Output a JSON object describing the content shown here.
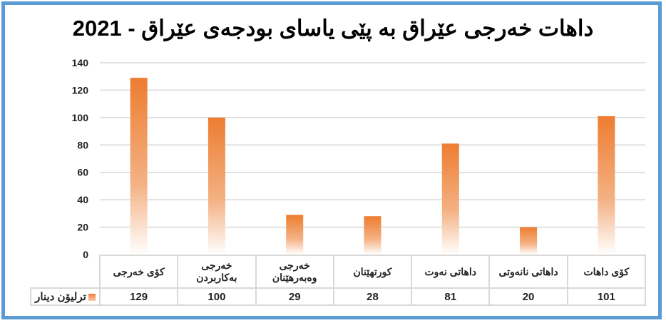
{
  "chart_data": {
    "type": "bar",
    "title": "داهات خەرجی عێراق بە پێی یاسای بودجەی عێراق - 2021",
    "categories": [
      "کۆی خەرجی",
      "خەرجی بەکاربردن",
      "خەرجی وەبەرهێنان",
      "کورتهێنان",
      "داهاتی نەوت",
      "داهاتی نانەوتی",
      "کۆی داهات"
    ],
    "category_lines": [
      [
        "کۆی خەرجی"
      ],
      [
        "خەرجی",
        "بەکاربردن"
      ],
      [
        "خەرجی",
        "وەبەرهێنان"
      ],
      [
        "کورتهێنان"
      ],
      [
        "داهاتی نەوت"
      ],
      [
        "داهاتی نانەوتی"
      ],
      [
        "کۆی داهات"
      ]
    ],
    "series": [
      {
        "name": "ترلیۆن دینار",
        "values": [
          129,
          100,
          29,
          28,
          81,
          20,
          101
        ]
      }
    ],
    "ylim": [
      0,
      140
    ],
    "yticks": [
      0,
      20,
      40,
      60,
      80,
      100,
      120,
      140
    ],
    "grid": true,
    "legend": "data-table",
    "bar_color": "#ed7d31",
    "frame_color": "#5b9bd5"
  }
}
